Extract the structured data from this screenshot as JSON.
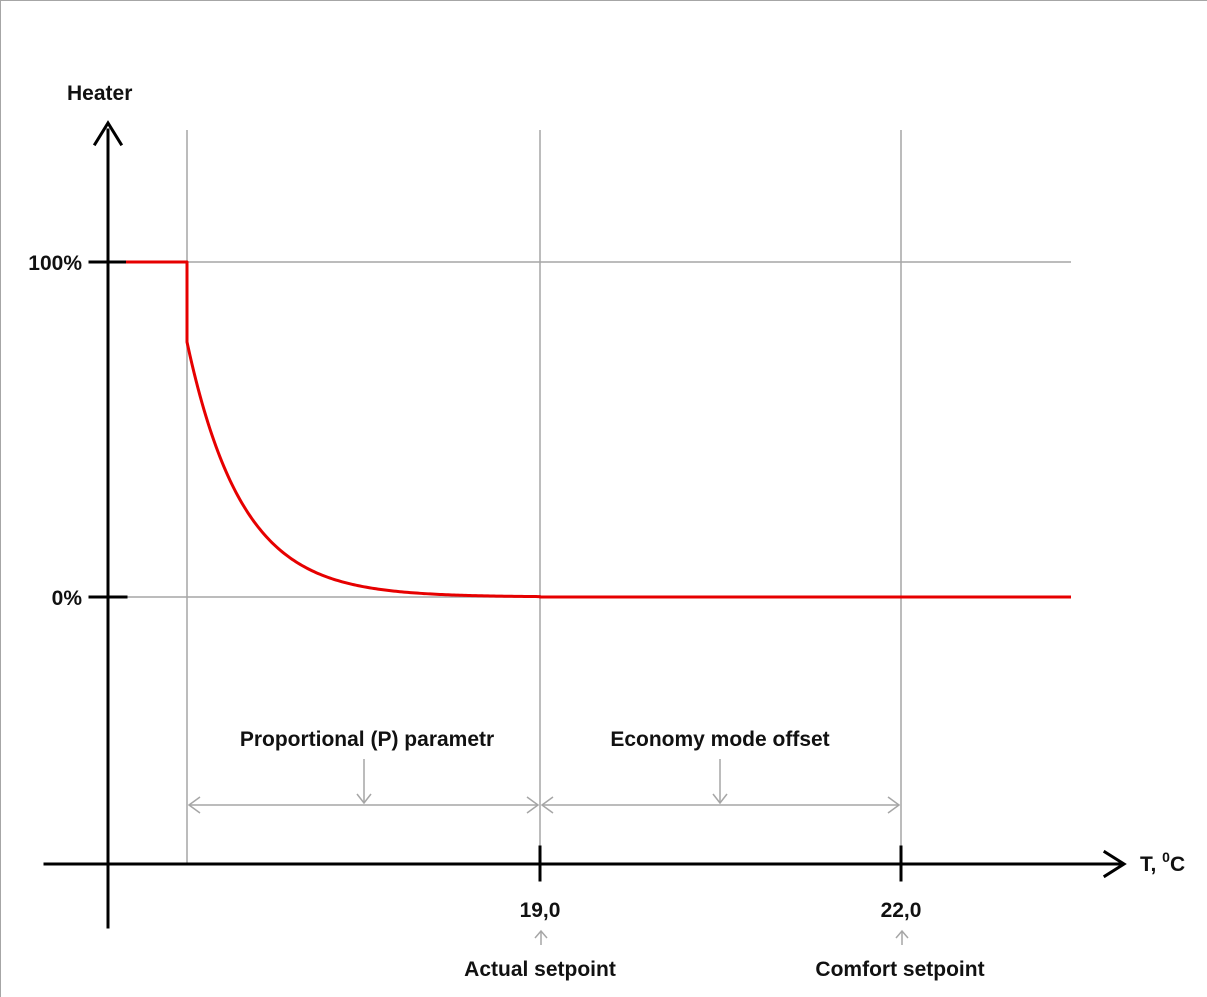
{
  "diagram": {
    "y_axis_label": "Heater",
    "x_axis_label": "T, ",
    "x_axis_unit_sup": "0",
    "x_axis_unit": "C",
    "y_ticks": [
      "100%",
      "0%"
    ],
    "x_ticks": [
      "19,0",
      "22,0"
    ],
    "spans": [
      {
        "label": "Proportional (P) parametr"
      },
      {
        "label": "Economy mode offset"
      }
    ],
    "setpoints": [
      {
        "label": "Actual setpoint",
        "value": "19,0"
      },
      {
        "label": "Comfort setpoint",
        "value": "22,0"
      }
    ],
    "colors": {
      "curve": "#e60000",
      "axis": "#000000",
      "grid": "#a6a6a6",
      "text": "#111111"
    }
  }
}
